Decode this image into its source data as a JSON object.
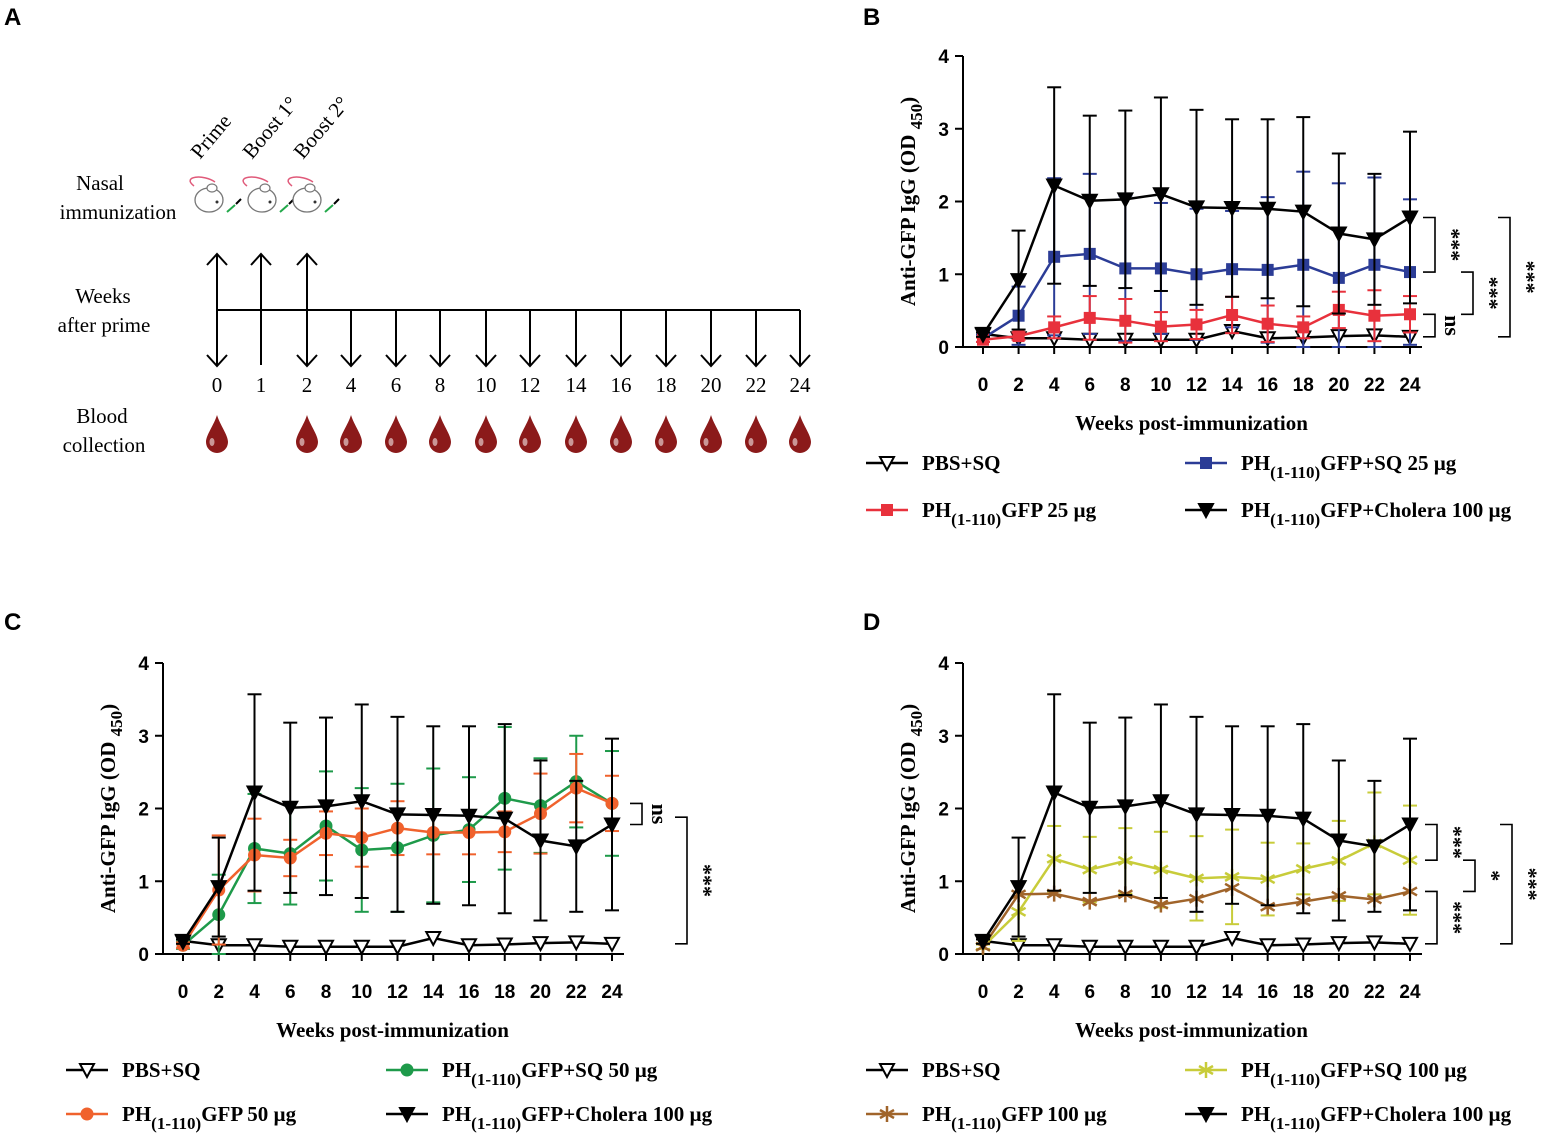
{
  "panel_labels": {
    "a": "A",
    "b": "B",
    "c": "C",
    "d": "D"
  },
  "timeline": {
    "events": [
      "Prime",
      "Boost 1°",
      "Boost 2°"
    ],
    "row_nasal": [
      "Nasal",
      "immunization"
    ],
    "row_weeks": [
      "Weeks",
      "after prime"
    ],
    "row_blood": [
      "Blood",
      "collection"
    ],
    "weeks": [
      "0",
      "1",
      "2",
      "4",
      "6",
      "8",
      "10",
      "12",
      "14",
      "16",
      "18",
      "20",
      "22",
      "24"
    ],
    "blood_weeks": [
      "0",
      "2",
      "4",
      "6",
      "8",
      "10",
      "12",
      "14",
      "16",
      "18",
      "20",
      "22",
      "24"
    ],
    "colors": {
      "blood": "#8b1a1a",
      "mouse_tail": "#e05a7a",
      "nasal_green": "#22a84a"
    }
  },
  "chart_data": [
    {
      "id": "B",
      "type": "line",
      "xlabel": "Weeks post-immunization",
      "ylabel": "Anti-GFP IgG (OD",
      "ylabel_sub": "450",
      "ylabel_end": ")",
      "x": [
        0,
        2,
        4,
        6,
        8,
        10,
        12,
        14,
        16,
        18,
        20,
        22,
        24
      ],
      "xlim": [
        0,
        24
      ],
      "ylim": [
        0,
        4
      ],
      "yticks": [
        0,
        1,
        2,
        3,
        4
      ],
      "series": [
        {
          "name": "PBS+SQ",
          "color": "#000000",
          "marker": "tri-down-open",
          "values": [
            0.18,
            0.12,
            0.12,
            0.1,
            0.1,
            0.1,
            0.1,
            0.22,
            0.12,
            0.13,
            0.15,
            0.16,
            0.14
          ],
          "err": [
            0,
            0,
            0,
            0,
            0,
            0,
            0,
            0,
            0,
            0,
            0,
            0,
            0
          ]
        },
        {
          "name": "PH(1-110)GFP+SQ 25 µg",
          "color": "#2b3c96",
          "marker": "square",
          "values": [
            0.12,
            0.43,
            1.24,
            1.28,
            1.08,
            1.08,
            1.0,
            1.07,
            1.06,
            1.13,
            0.95,
            1.13,
            1.03
          ],
          "err": [
            0.05,
            0.4,
            1.08,
            1.1,
            1.0,
            0.9,
            0.9,
            0.8,
            1.0,
            1.28,
            1.3,
            1.2,
            1.0
          ]
        },
        {
          "name": "PH(1-110)GFP 25 µg",
          "color": "#e8313c",
          "marker": "square",
          "values": [
            0.1,
            0.15,
            0.27,
            0.4,
            0.36,
            0.28,
            0.31,
            0.44,
            0.32,
            0.27,
            0.51,
            0.43,
            0.45
          ],
          "err": [
            0.03,
            0.05,
            0.15,
            0.3,
            0.3,
            0.2,
            0.2,
            0.25,
            0.25,
            0.15,
            0.25,
            0.35,
            0.25
          ]
        },
        {
          "name": "PH(1-110)GFP+Cholera 100 µg",
          "color": "#000000",
          "marker": "tri-down",
          "values": [
            0.17,
            0.92,
            2.22,
            2.01,
            2.03,
            2.1,
            1.92,
            1.91,
            1.9,
            1.86,
            1.56,
            1.48,
            1.78
          ],
          "err": [
            0.03,
            0.68,
            1.35,
            1.17,
            1.22,
            1.33,
            1.34,
            1.22,
            1.23,
            1.3,
            1.1,
            0.9,
            1.18
          ]
        }
      ],
      "legend": {
        "placement": "bottom",
        "col1": [
          "PBS+SQ",
          "PH(1-110)GFP 25 µg"
        ],
        "col2": [
          "PH(1-110)GFP+SQ 25 µg",
          "PH(1-110)GFP+Cholera 100 µg"
        ]
      },
      "annotations": [
        {
          "label": "***",
          "from": 1.78,
          "to": 1.03
        },
        {
          "label": "ns",
          "from": 0.45,
          "to": 0.14
        },
        {
          "label": "***",
          "from": 1.03,
          "to": 0.45
        },
        {
          "label": "***",
          "from": 1.78,
          "to": 0.14
        }
      ]
    },
    {
      "id": "C",
      "type": "line",
      "xlabel": "Weeks post-immunization",
      "ylabel": "Anti-GFP IgG (OD",
      "ylabel_sub": "450",
      "ylabel_end": ")",
      "x": [
        0,
        2,
        4,
        6,
        8,
        10,
        12,
        14,
        16,
        18,
        20,
        22,
        24
      ],
      "xlim": [
        0,
        24
      ],
      "ylim": [
        0,
        4
      ],
      "yticks": [
        0,
        1,
        2,
        3,
        4
      ],
      "series": [
        {
          "name": "PBS+SQ",
          "color": "#000000",
          "marker": "tri-down-open",
          "values": [
            0.18,
            0.12,
            0.12,
            0.1,
            0.1,
            0.1,
            0.1,
            0.22,
            0.12,
            0.13,
            0.15,
            0.16,
            0.14
          ],
          "err": [
            0,
            0,
            0,
            0,
            0,
            0,
            0,
            0,
            0,
            0,
            0,
            0,
            0
          ]
        },
        {
          "name": "PH(1-110)GFP+SQ 50 µg",
          "color": "#1e9a4a",
          "marker": "circle",
          "values": [
            0.12,
            0.54,
            1.45,
            1.38,
            1.76,
            1.43,
            1.46,
            1.63,
            1.71,
            2.14,
            2.04,
            2.37,
            2.07
          ],
          "err": [
            0.05,
            0.55,
            0.75,
            0.7,
            0.75,
            0.85,
            0.88,
            0.92,
            0.72,
            0.98,
            0.65,
            0.63,
            0.72
          ]
        },
        {
          "name": "PH(1-110)GFP 50 µg",
          "color": "#f0622d",
          "marker": "circle",
          "values": [
            0.12,
            0.88,
            1.36,
            1.32,
            1.66,
            1.6,
            1.73,
            1.67,
            1.67,
            1.68,
            1.93,
            2.28,
            2.07
          ],
          "err": [
            0.04,
            0.75,
            0.5,
            0.25,
            0.3,
            0.4,
            0.37,
            0.3,
            0.3,
            0.28,
            0.55,
            0.47,
            0.38
          ]
        },
        {
          "name": "PH(1-110)GFP+Cholera 100 µg",
          "color": "#000000",
          "marker": "tri-down",
          "values": [
            0.17,
            0.92,
            2.22,
            2.01,
            2.03,
            2.1,
            1.92,
            1.91,
            1.9,
            1.86,
            1.56,
            1.48,
            1.78
          ],
          "err": [
            0.03,
            0.68,
            1.35,
            1.17,
            1.22,
            1.33,
            1.34,
            1.22,
            1.23,
            1.3,
            1.1,
            0.9,
            1.18
          ]
        }
      ],
      "legend": {
        "placement": "bottom",
        "col1": [
          "PBS+SQ",
          "PH(1-110)GFP 50 µg"
        ],
        "col2": [
          "PH(1-110)GFP+SQ 50 µg",
          "PH(1-110)GFP+Cholera 100 µg"
        ]
      },
      "annotations": [
        {
          "label": "ns",
          "from": 2.07,
          "to": 1.78
        },
        {
          "label": "***",
          "from": 1.88,
          "to": 0.14
        }
      ]
    },
    {
      "id": "D",
      "type": "line",
      "xlabel": "Weeks post-immunization",
      "ylabel": "Anti-GFP IgG (OD",
      "ylabel_sub": "450",
      "ylabel_end": ")",
      "x": [
        0,
        2,
        4,
        6,
        8,
        10,
        12,
        14,
        16,
        18,
        20,
        22,
        24
      ],
      "xlim": [
        0,
        24
      ],
      "ylim": [
        0,
        4
      ],
      "yticks": [
        0,
        1,
        2,
        3,
        4
      ],
      "series": [
        {
          "name": "PBS+SQ",
          "color": "#000000",
          "marker": "tri-down-open",
          "values": [
            0.18,
            0.12,
            0.12,
            0.1,
            0.1,
            0.1,
            0.1,
            0.22,
            0.12,
            0.13,
            0.15,
            0.16,
            0.14
          ],
          "err": [
            0,
            0,
            0,
            0,
            0,
            0,
            0,
            0,
            0,
            0,
            0,
            0,
            0
          ]
        },
        {
          "name": "PH(1-110)GFP+SQ 100 µg",
          "color": "#c8cc3a",
          "marker": "asterisk",
          "values": [
            0.1,
            0.58,
            1.31,
            1.16,
            1.28,
            1.16,
            1.04,
            1.06,
            1.03,
            1.17,
            1.28,
            1.52,
            1.29
          ],
          "err": [
            0.03,
            0.4,
            0.45,
            0.45,
            0.45,
            0.52,
            0.58,
            0.65,
            0.5,
            0.35,
            0.55,
            0.7,
            0.75
          ]
        },
        {
          "name": "PH(1-110)GFP 100 µg",
          "color": "#a0642a",
          "marker": "asterisk",
          "values": [
            0.1,
            0.82,
            0.83,
            0.72,
            0.82,
            0.68,
            0.76,
            0.91,
            0.65,
            0.72,
            0.8,
            0.75,
            0.86
          ]
        },
        {
          "name": "PH(1-110)GFP+Cholera 100 µg",
          "color": "#000000",
          "marker": "tri-down",
          "values": [
            0.17,
            0.92,
            2.22,
            2.01,
            2.03,
            2.1,
            1.92,
            1.91,
            1.9,
            1.86,
            1.56,
            1.48,
            1.78
          ],
          "err": [
            0.03,
            0.68,
            1.35,
            1.17,
            1.22,
            1.33,
            1.34,
            1.22,
            1.23,
            1.3,
            1.1,
            0.9,
            1.18
          ]
        }
      ],
      "legend": {
        "placement": "bottom",
        "col1": [
          "PBS+SQ",
          "PH(1-110)GFP 100 µg"
        ],
        "col2": [
          "PH(1-110)GFP+SQ 100 µg",
          "PH(1-110)GFP+Cholera 100 µg"
        ]
      },
      "annotations": [
        {
          "label": "***",
          "from": 1.78,
          "to": 1.29
        },
        {
          "label": "*",
          "from": 1.29,
          "to": 0.86
        },
        {
          "label": "***",
          "from": 0.86,
          "to": 0.14
        },
        {
          "label": "***",
          "from": 1.78,
          "to": 0.14
        }
      ]
    }
  ]
}
